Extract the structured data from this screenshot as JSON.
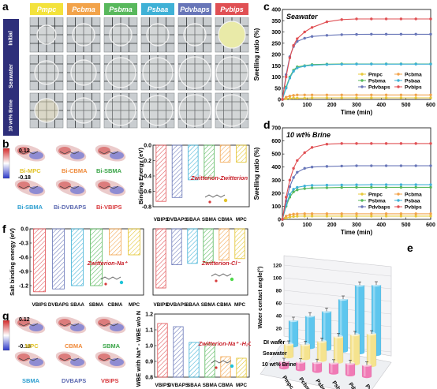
{
  "panel_letters": {
    "a": "a",
    "b": "b",
    "c": "c",
    "d": "d",
    "e": "e",
    "f": "f",
    "g": "g"
  },
  "panel_a": {
    "columns": [
      {
        "label": "Pmpc",
        "color": "#f3e23c"
      },
      {
        "label": "Pcbma",
        "color": "#f2a34a"
      },
      {
        "label": "Psbma",
        "color": "#58b85c"
      },
      {
        "label": "Psbaa",
        "color": "#3fb1d6"
      },
      {
        "label": "Pdvbaps",
        "color": "#6876b8"
      },
      {
        "label": "Pvbips",
        "color": "#e05054"
      }
    ],
    "rows": [
      "Initial",
      "Seawater",
      "10 wt% Brine"
    ]
  },
  "panel_b": {
    "scale_max": "0.12",
    "scale_min": "-0.18",
    "molecules": [
      {
        "label": "Bi-MPC",
        "color": "#e2c32a"
      },
      {
        "label": "Bi-CBMA",
        "color": "#ef8a3a"
      },
      {
        "label": "Bi-SBMA",
        "color": "#3aa448"
      },
      {
        "label": "Bi-SBMA",
        "color": "#2f9fd0"
      },
      {
        "label": "Bi-DVBAPS",
        "color": "#5b68b0"
      },
      {
        "label": "Bi-VBIPS",
        "color": "#d83a3e"
      }
    ],
    "chart_title": "Zwitterion-Zwitterion"
  },
  "panel_g": {
    "scale_max": "0.12",
    "scale_min": "-0.18",
    "molecules": [
      {
        "label": "MPC",
        "color": "#e2c32a"
      },
      {
        "label": "CBMA",
        "color": "#ef8a3a"
      },
      {
        "label": "SBMA",
        "color": "#3aa448"
      },
      {
        "label": "SBMA",
        "color": "#2f9fd0"
      },
      {
        "label": "DVBAPS",
        "color": "#5b68b0"
      },
      {
        "label": "VBIPS",
        "color": "#d83a3e"
      }
    ]
  },
  "chart_data": [
    {
      "id": "b-binding",
      "type": "bar",
      "ylabel": "Binding Energy (eV)",
      "annotation": "Zwitterion-Zwitterion",
      "categories": [
        "VBIPS",
        "DVBAPS",
        "SBAA",
        "SBMA",
        "CBMA",
        "MPC"
      ],
      "colors": [
        "#e05054",
        "#6876b8",
        "#3fb1d6",
        "#58b85c",
        "#f2a34a",
        "#e2c32a"
      ],
      "values": [
        -0.73,
        -0.68,
        -0.45,
        -0.43,
        -0.22,
        -0.22
      ],
      "ylim": [
        -0.8,
        0.0
      ],
      "yticks": [
        "-0.8",
        "-0.6",
        "-0.4",
        "-0.2",
        "0.0"
      ]
    },
    {
      "id": "c-seawater",
      "type": "line",
      "title": "Seawater",
      "xlabel": "Time (min)",
      "ylabel": "Swelling ratio (%)",
      "xlim": [
        0,
        600
      ],
      "ylim": [
        0,
        400
      ],
      "xticks": [
        "0",
        "100",
        "200",
        "300",
        "400",
        "500",
        "600"
      ],
      "yticks": [
        "0",
        "50",
        "100",
        "150",
        "200",
        "250",
        "300",
        "350",
        "400"
      ],
      "x": [
        0,
        15,
        30,
        45,
        60,
        90,
        120,
        180,
        240,
        300,
        360,
        420,
        480,
        540,
        600
      ],
      "series": [
        {
          "name": "Pmpc",
          "color": "#e8c93a",
          "values": [
            0,
            3,
            5,
            6,
            6,
            6,
            7,
            7,
            7,
            7,
            7,
            7,
            7,
            7,
            7
          ]
        },
        {
          "name": "Pcbma",
          "color": "#f2a34a",
          "values": [
            0,
            10,
            15,
            18,
            20,
            20,
            20,
            20,
            20,
            20,
            20,
            20,
            20,
            20,
            20
          ]
        },
        {
          "name": "Psbma",
          "color": "#58b85c",
          "values": [
            0,
            55,
            100,
            130,
            145,
            150,
            155,
            157,
            158,
            158,
            158,
            158,
            158,
            158,
            158
          ]
        },
        {
          "name": "Psbaa",
          "color": "#3fb1d6",
          "values": [
            0,
            50,
            95,
            125,
            140,
            148,
            152,
            155,
            156,
            157,
            157,
            157,
            157,
            157,
            157
          ]
        },
        {
          "name": "Pdvbaps",
          "color": "#6876b8",
          "values": [
            0,
            110,
            190,
            235,
            258,
            272,
            280,
            285,
            288,
            289,
            290,
            290,
            290,
            290,
            290
          ]
        },
        {
          "name": "Pvbips",
          "color": "#e05054",
          "values": [
            0,
            100,
            185,
            240,
            270,
            300,
            320,
            345,
            355,
            358,
            358,
            358,
            358,
            358,
            358
          ]
        }
      ],
      "legend": "bottom-right"
    },
    {
      "id": "d-brine",
      "type": "line",
      "title": "10 wt% Brine",
      "xlabel": "Time (min)",
      "ylabel": "Swelling ratio (%)",
      "xlim": [
        0,
        600
      ],
      "ylim": [
        0,
        700
      ],
      "xticks": [
        "0",
        "100",
        "200",
        "300",
        "400",
        "500",
        "600"
      ],
      "yticks": [
        "0",
        "100",
        "200",
        "300",
        "400",
        "500",
        "600",
        "700"
      ],
      "x": [
        0,
        15,
        30,
        45,
        60,
        90,
        120,
        180,
        240,
        300,
        360,
        420,
        480,
        540,
        600
      ],
      "series": [
        {
          "name": "Pmpc",
          "color": "#e8c93a",
          "values": [
            0,
            10,
            18,
            22,
            24,
            25,
            25,
            25,
            25,
            25,
            25,
            25,
            25,
            25,
            25
          ]
        },
        {
          "name": "Pcbma",
          "color": "#f2a34a",
          "values": [
            0,
            25,
            35,
            40,
            42,
            43,
            43,
            43,
            43,
            43,
            43,
            43,
            43,
            43,
            43
          ]
        },
        {
          "name": "Psbma",
          "color": "#58b85c",
          "values": [
            0,
            100,
            170,
            210,
            225,
            235,
            240,
            242,
            244,
            245,
            245,
            245,
            245,
            245,
            245
          ]
        },
        {
          "name": "Psbaa",
          "color": "#3fb1d6",
          "values": [
            0,
            110,
            190,
            230,
            245,
            255,
            260,
            262,
            263,
            264,
            265,
            265,
            265,
            265,
            265
          ]
        },
        {
          "name": "Pdvbaps",
          "color": "#6876b8",
          "values": [
            0,
            140,
            250,
            320,
            360,
            390,
            400,
            405,
            408,
            410,
            410,
            410,
            410,
            410,
            410
          ]
        },
        {
          "name": "Pvbips",
          "color": "#e05054",
          "values": [
            0,
            170,
            300,
            390,
            450,
            510,
            550,
            575,
            580,
            580,
            580,
            580,
            580,
            580,
            580
          ]
        }
      ],
      "legend": "bottom-right"
    },
    {
      "id": "e-contact",
      "type": "bar",
      "ylabel": "Water contact angle(°)",
      "categories": [
        "Pmpc",
        "Pcbma",
        "Psbma",
        "Psbaa",
        "Pdvbaps",
        "Pvbips"
      ],
      "series": [
        {
          "name": "DI water",
          "color": "#5ec6ee",
          "values": [
            40,
            50,
            60,
            82,
            107,
            110
          ]
        },
        {
          "name": "Seawater",
          "color": "#f5e38e",
          "values": [
            20,
            22,
            30,
            40,
            46,
            50
          ]
        },
        {
          "name": "10 wt% Brine",
          "color": "#f07ab5",
          "values": [
            10,
            12,
            14,
            16,
            18,
            18
          ]
        }
      ],
      "ylim": [
        0,
        120
      ],
      "yticks": [
        "0",
        "20",
        "40",
        "60",
        "80",
        "100",
        "120"
      ]
    },
    {
      "id": "f-na",
      "type": "bar",
      "ylabel": "Salt binding energy (eV)",
      "annotation": "Zwitterion-Na⁺",
      "categories": [
        "VBIPS",
        "DVBAPS",
        "SBAA",
        "SBMA",
        "CBMA",
        "MPC"
      ],
      "colors": [
        "#e05054",
        "#6876b8",
        "#3fb1d6",
        "#58b85c",
        "#f2a34a",
        "#e2c32a"
      ],
      "values": [
        -1.33,
        -1.27,
        -1.2,
        -1.2,
        -0.55,
        -0.55
      ],
      "ylim": [
        -1.4,
        0.0
      ],
      "yticks": [
        "-1.2",
        "-0.9",
        "-0.6",
        "-0.3",
        "0.0"
      ]
    },
    {
      "id": "f-cl",
      "type": "bar",
      "annotation": "Zwitterion-Cl⁻",
      "categories": [
        "VBIPS",
        "DVBAPS",
        "SBAA",
        "SBMA",
        "CBMA",
        "MPC"
      ],
      "colors": [
        "#e05054",
        "#6876b8",
        "#3fb1d6",
        "#58b85c",
        "#f2a34a",
        "#e2c32a"
      ],
      "values": [
        -1.25,
        -0.76,
        -0.73,
        -0.71,
        -0.66,
        -0.63
      ],
      "ylim": [
        -1.4,
        0.0
      ]
    },
    {
      "id": "g-wbe",
      "type": "bar",
      "ylabel": "WBE with Na⁺ - WBE w/o Na⁺",
      "annotation": "Zwitterion-Na⁺ -H₂O",
      "categories": [
        "VBIPS",
        "DVBAPS",
        "SBAA",
        "SBMA",
        "CBMA",
        "MPC"
      ],
      "colors": [
        "#e05054",
        "#6876b8",
        "#3fb1d6",
        "#58b85c",
        "#f2a34a",
        "#e2c32a"
      ],
      "values": [
        1.14,
        1.12,
        1.02,
        1.01,
        0.93,
        0.92
      ],
      "ylim": [
        0.8,
        1.2
      ],
      "yticks": [
        "0.8",
        "0.9",
        "1.0",
        "1.1",
        "1.2"
      ]
    }
  ]
}
